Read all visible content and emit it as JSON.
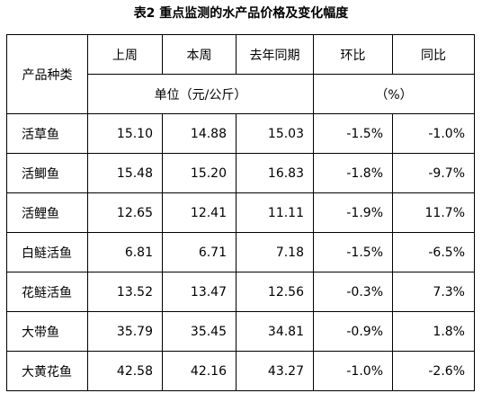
{
  "title": "表2 重点监测的水产品价格及变化幅度",
  "table": {
    "header": {
      "product": "产品种类",
      "columns": [
        "上周",
        "本周",
        "去年同期",
        "环比",
        "同比"
      ],
      "unit_price": "单位（元/公斤）",
      "unit_pct": "（%）"
    },
    "rows": [
      [
        "活草鱼",
        "15.10",
        "14.88",
        "15.03",
        "-1.5%",
        "-1.0%"
      ],
      [
        "活鲫鱼",
        "15.48",
        "15.20",
        "16.83",
        "-1.8%",
        "-9.7%"
      ],
      [
        "活鲤鱼",
        "12.65",
        "12.41",
        "11.11",
        "-1.9%",
        "11.7%"
      ],
      [
        "白鲢活鱼",
        "6.81",
        "6.71",
        "7.18",
        "-1.5%",
        "-6.5%"
      ],
      [
        "花鲢活鱼",
        "13.52",
        "13.47",
        "12.56",
        "-0.3%",
        "7.3%"
      ],
      [
        "大带鱼",
        "35.79",
        "35.45",
        "34.81",
        "-0.9%",
        "1.8%"
      ],
      [
        "大黄花鱼",
        "42.58",
        "42.16",
        "43.27",
        "-1.0%",
        "-2.6%"
      ]
    ]
  }
}
